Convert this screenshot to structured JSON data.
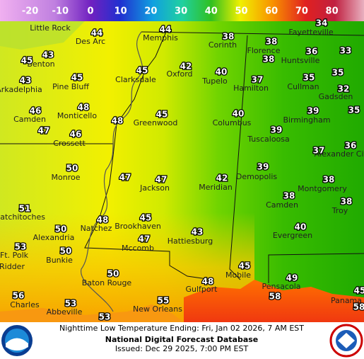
{
  "colorbar": {
    "ticks": [
      -20,
      -10,
      0,
      10,
      20,
      30,
      40,
      50,
      60,
      70,
      80
    ]
  },
  "temperatures": [
    34,
    44,
    44,
    38,
    38,
    43,
    45,
    36,
    33,
    42,
    38,
    45,
    45,
    40,
    37,
    35,
    35,
    43,
    32,
    46,
    48,
    45,
    48,
    40,
    39,
    35,
    47,
    46,
    39,
    36,
    37,
    50,
    47,
    47,
    42,
    39,
    38,
    38,
    38,
    51,
    48,
    45,
    50,
    43,
    40,
    47,
    53,
    50,
    45,
    50,
    49,
    48,
    58,
    55,
    56,
    53,
    45,
    58,
    53
  ],
  "cities": [
    "Little Rock",
    "Des Arc",
    "Memphis",
    "Fayetteville",
    "Corinth",
    "Florence",
    "Benton",
    "Huntsville",
    "Oxford",
    "Pine Bluff",
    "Clarksdale",
    "Tupelo",
    "Hamilton",
    "Cullman",
    "Gadsden",
    "Arkadelphia",
    "Monticello",
    "Greenwood",
    "Columbus",
    "Birmingham",
    "Camden",
    "Tuscaloosa",
    "Crossett",
    "Alexander City",
    "Monroe",
    "Jackson",
    "Meridian",
    "Demopolis",
    "Montgomery",
    "Camden",
    "Troy",
    "Natchitoches",
    "Natchez",
    "Brookhaven",
    "Alexandria",
    "Evergreen",
    "Hattiesburg",
    "Mccomb",
    "Ft. Polk",
    "Bunkie",
    "Ridder",
    "Mobile",
    "Baton Rouge",
    "Gulfport",
    "Pensacola",
    "Charles",
    "Abbeville",
    "New Orleans",
    "Panama"
  ],
  "footer": {
    "line1": "Nighttime Low Temperature Ending: Fri, Jan 02 2026, 7 AM EST",
    "line2": "National Digital Forecast Database",
    "line3": "Issued: Dec 29 2025, 7:00 PM EST"
  }
}
